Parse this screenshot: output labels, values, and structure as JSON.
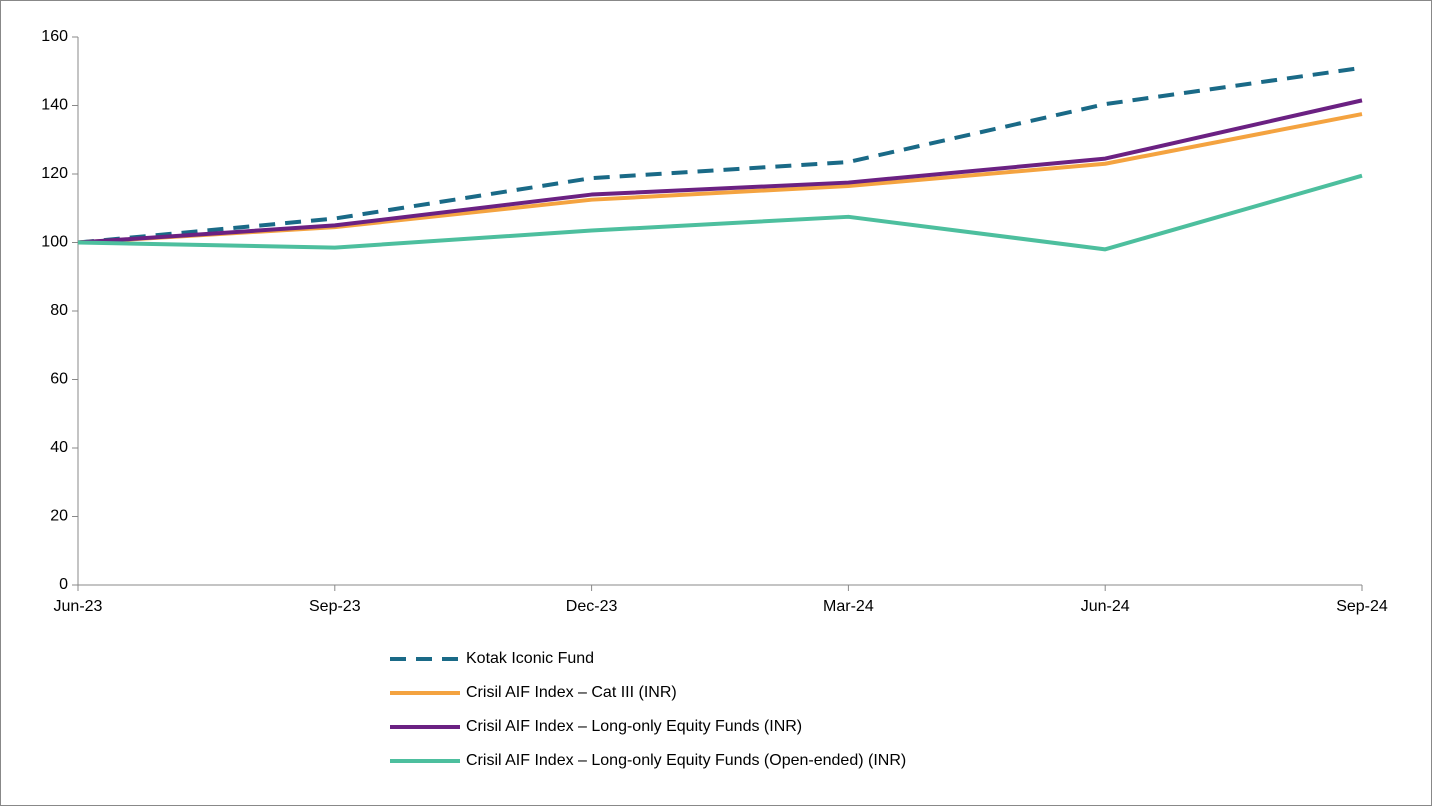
{
  "chart_data": {
    "type": "line",
    "categories": [
      "Jun-23",
      "Sep-23",
      "Dec-23",
      "Mar-24",
      "Jun-24",
      "Sep-24"
    ],
    "series": [
      {
        "name": "Kotak Iconic Fund",
        "color": "#1a6a87",
        "dashed": true,
        "values": [
          100,
          107,
          118.8,
          123.5,
          140.4,
          151
        ]
      },
      {
        "name": "Crisil AIF Index – Cat III (INR)",
        "color": "#f4a340",
        "dashed": false,
        "values": [
          100,
          104.5,
          112.5,
          116.5,
          123,
          137.5
        ]
      },
      {
        "name": "Crisil AIF Index – Long-only Equity Funds (INR)",
        "color": "#6b2182",
        "dashed": false,
        "values": [
          100,
          105,
          114,
          117.5,
          124.5,
          141.5
        ]
      },
      {
        "name": "Crisil AIF Index – Long-only Equity Funds (Open-ended) (INR)",
        "color": "#4dbf9e",
        "dashed": false,
        "values": [
          100,
          98.5,
          103.5,
          107.5,
          98,
          119.5
        ]
      }
    ],
    "ylim": [
      0,
      160
    ],
    "yticks": [
      0,
      20,
      40,
      60,
      80,
      100,
      120,
      140,
      160
    ],
    "grid": false,
    "legend": "bottom"
  }
}
